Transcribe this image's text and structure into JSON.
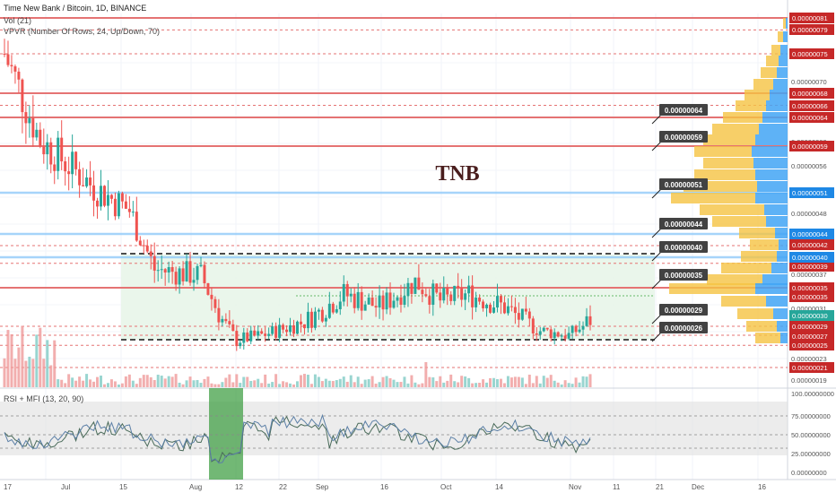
{
  "header": {
    "title": "Time New Bank / Bitcoin, 1D, BINANCE",
    "vol_label": "Vol (21)",
    "vpvr_label": "VPVR (Number Of Rows, 24, Up/Down, 70)",
    "rsi_label": "RSI + MFI (13, 20, 90)"
  },
  "chart_data": {
    "type": "candlestick",
    "symbol": "TNB",
    "watermark": "TNB",
    "price_axis_ticks": [
      "0.00000070",
      "0.00000060",
      "0.00000056",
      "0.00000052",
      "0.00000048",
      "0.00000037",
      "0.00000031",
      "0.00000023",
      "0.00000019"
    ],
    "price_badges_red": [
      "0.00000081",
      "0.00000079",
      "0.00000075",
      "0.00000068",
      "0.00000066",
      "0.00000064",
      "0.00000059",
      "0.00000042",
      "0.00000039",
      "0.00000035",
      "0.00000035",
      "0.00000029",
      "0.00000027",
      "0.00000025",
      "0.00000021"
    ],
    "price_badges_blue": [
      "0.00000051",
      "0.00000044",
      "0.00000040"
    ],
    "current_price": "0.00000030",
    "callouts": [
      "0.00000064",
      "0.00000059",
      "0.00000051",
      "0.00000044",
      "0.00000040",
      "0.00000035",
      "0.00000029",
      "0.00000026"
    ],
    "x_ticks": [
      "17",
      "Jul",
      "15",
      "Aug",
      "12",
      "22",
      "Sep",
      "16",
      "Oct",
      "14",
      "Nov",
      "11",
      "21",
      "Dec",
      "16"
    ],
    "rsi_axis_ticks": [
      "100.00000000",
      "75.00000000",
      "50.00000000",
      "25.00000000",
      "0.00000000"
    ],
    "horizontal_levels": {
      "red": [
        8.1e-07,
        7.9e-07,
        7.5e-07,
        6.8e-07,
        6.6e-07,
        6.4e-07,
        5.9e-07,
        4.2e-07,
        3.9e-07,
        3.5e-07,
        2.9e-07,
        2.7e-07,
        2.5e-07,
        2.1e-07
      ],
      "blue": [
        5.1e-07,
        4.4e-07,
        4e-07
      ],
      "range_box_top": 4e-07,
      "range_box_bottom": 2.6e-07
    }
  },
  "colors": {
    "up": "#26a69a",
    "down": "#ef5350",
    "red_level": "#e57373",
    "blue_level": "#90caf9",
    "range_fill": "#e8f5e9",
    "badge_red": "#c62828",
    "badge_blue": "#1e88e5",
    "current_badge": "#26a69a",
    "rsi_line": "#5b7fa6",
    "mfi_line": "#4a6b5a",
    "rsi_band": "#e0e0e0",
    "highlight": "#43a047"
  }
}
